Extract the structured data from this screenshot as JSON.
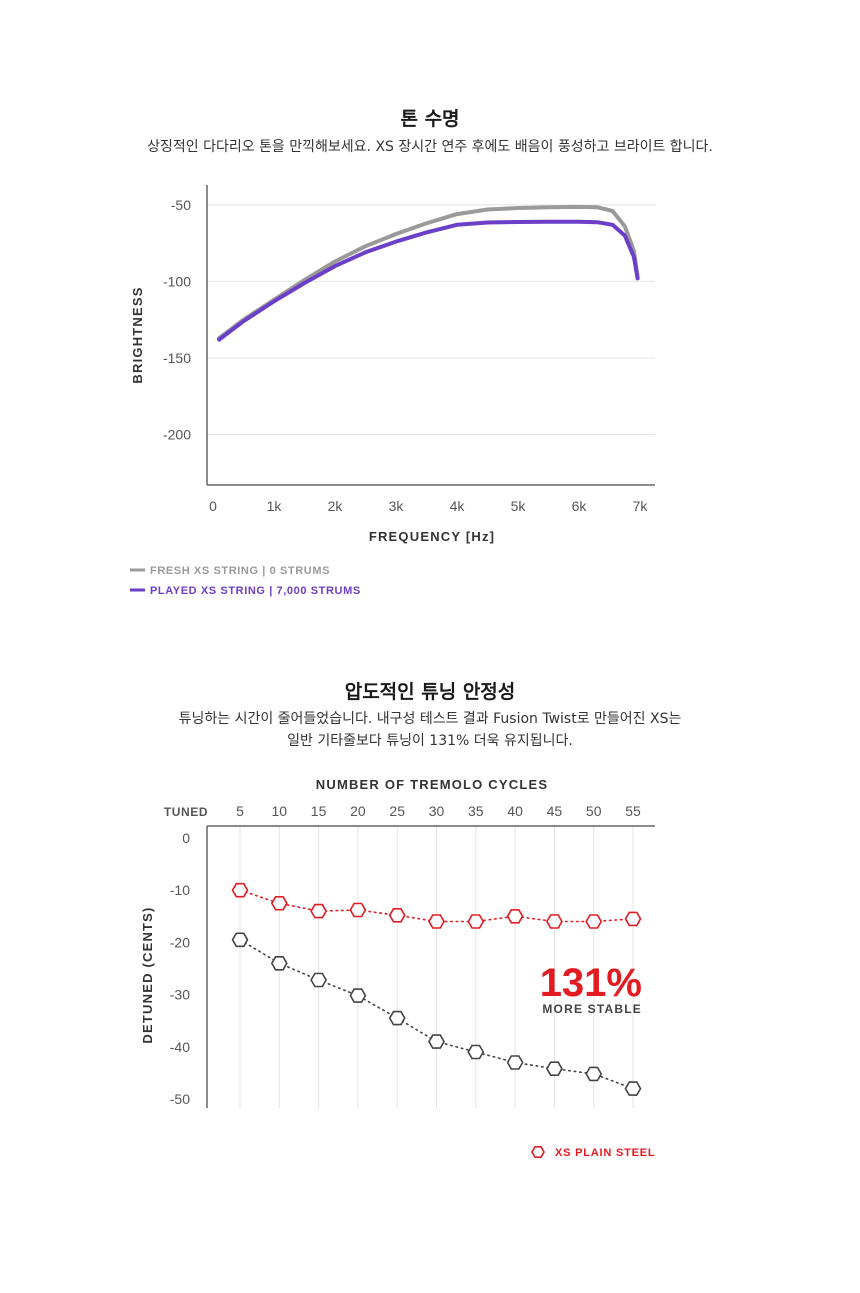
{
  "section1": {
    "title": "톤 수명",
    "description": "상징적인 다다리오 톤을 만끽해보세요. XS 장시간 연주 후에도 배음이 풍성하고 브라이트 합니다."
  },
  "section2": {
    "title": "압도적인 튜닝 안정성",
    "description_line1": "튜닝하는 시간이 줄어들었습니다. 내구성 테스트 결과 Fusion Twist로 만들어진 XS는",
    "description_line2": "일반 기타줄보다 튜닝이 131% 더욱 유지됩니다."
  },
  "chart_data": [
    {
      "type": "line",
      "title": "",
      "xlabel": "FREQUENCY [Hz]",
      "ylabel": "BRIGHTNESS",
      "xlim": [
        0,
        7000
      ],
      "ylim": [
        -233,
        -37
      ],
      "x_ticks": [
        0,
        1000,
        2000,
        3000,
        4000,
        5000,
        6000,
        7000
      ],
      "x_tick_labels": [
        "0",
        "1k",
        "2k",
        "3k",
        "4k",
        "5k",
        "6k",
        "7k"
      ],
      "y_ticks": [
        -50,
        -100,
        -150,
        -200
      ],
      "y_tick_labels": [
        "-50",
        "-100",
        "-150",
        "-200"
      ],
      "grid": "horizontal",
      "legend_position": "bottom-left",
      "series": [
        {
          "name": "FRESH XS STRING | 0 STRUMS",
          "color": "#9a9a9a",
          "x": [
            100,
            500,
            1000,
            1500,
            2000,
            2500,
            3000,
            3500,
            4000,
            4500,
            5000,
            5500,
            6000,
            6300,
            6550,
            6750,
            6900,
            6960
          ],
          "y": [
            -137,
            -125,
            -112,
            -99,
            -87,
            -77,
            -69,
            -62,
            -56,
            -53,
            -52,
            -51.5,
            -51.3,
            -51.5,
            -54,
            -64,
            -80,
            -97
          ]
        },
        {
          "name": "PLAYED XS STRING | 7,000 STRUMS",
          "color": "#6b3fc8",
          "x": [
            100,
            500,
            1000,
            1500,
            2000,
            2500,
            3000,
            3500,
            4000,
            4500,
            5000,
            5500,
            6000,
            6300,
            6550,
            6750,
            6900,
            6960
          ],
          "y": [
            -138,
            -126,
            -113,
            -101,
            -90,
            -81,
            -74,
            -68,
            -63,
            -61.5,
            -61.2,
            -61,
            -61,
            -61.3,
            -63,
            -70,
            -84,
            -98
          ]
        }
      ]
    },
    {
      "type": "scatter",
      "title": "NUMBER OF TREMOLO CYCLES",
      "xlabel": "",
      "ylabel": "DETUNED (CENTS)",
      "x_ticks": [
        0,
        5,
        10,
        15,
        20,
        25,
        30,
        35,
        40,
        45,
        50,
        55
      ],
      "x_tick_labels": [
        "TUNED",
        "5",
        "10",
        "15",
        "20",
        "25",
        "30",
        "35",
        "40",
        "45",
        "50",
        "55"
      ],
      "x_axis_position": "top",
      "y_ticks": [
        0,
        -10,
        -20,
        -30,
        -40,
        -50
      ],
      "y_tick_labels": [
        "0",
        "-10",
        "-20",
        "-30",
        "-40",
        "-50"
      ],
      "ylim": [
        -52,
        2
      ],
      "grid": "vertical",
      "annotation": {
        "value": "131%",
        "label": "MORE STABLE",
        "color": "#e21b22"
      },
      "series": [
        {
          "name": "XS PLAIN STEEL",
          "color": "#e21b22",
          "x": [
            5,
            10,
            15,
            20,
            25,
            30,
            35,
            40,
            45,
            50,
            55
          ],
          "y": [
            -10,
            -12.5,
            -14,
            -13.8,
            -14.8,
            -16,
            -16,
            -15,
            -16,
            -16,
            -15.5
          ]
        },
        {
          "name": "",
          "color": "#444444",
          "x": [
            5,
            10,
            15,
            20,
            25,
            30,
            35,
            40,
            45,
            50,
            55
          ],
          "y": [
            -19.5,
            -24,
            -27.2,
            -30.2,
            -34.5,
            -39,
            -41,
            -43,
            -44.2,
            -45.2,
            -48
          ]
        }
      ]
    }
  ]
}
